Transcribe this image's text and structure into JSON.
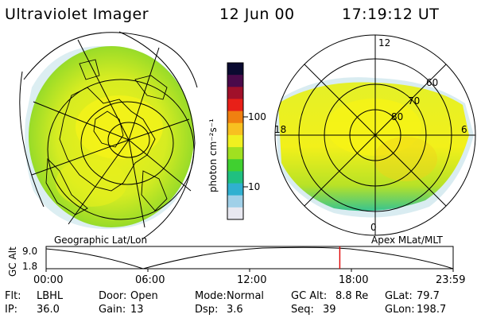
{
  "header": {
    "instrument": "Ultraviolet Imager",
    "date": "12 Jun 00",
    "time": "17:19:12 UT"
  },
  "left_panel": {
    "caption": "Geographic Lat/Lon"
  },
  "colorbar": {
    "unit_label": "photon cm⁻²s⁻¹",
    "ticks": [
      "100",
      "10"
    ],
    "colors": [
      "#0a0a30",
      "#4a0a4a",
      "#a0102a",
      "#e82018",
      "#f08010",
      "#f8c020",
      "#f0f020",
      "#a0e020",
      "#40d030",
      "#20c080",
      "#30b0d0",
      "#a0d0e8",
      "#e8e8f0"
    ]
  },
  "right_panel": {
    "caption": "Apex MLat/MLT",
    "mlt_labels": [
      "12",
      "6",
      "0",
      "18"
    ],
    "lat_labels": [
      "60",
      "70",
      "80"
    ]
  },
  "altitude_strip": {
    "ylabel": "GC Alt",
    "y_ticks": [
      "9.0",
      "1.8"
    ],
    "x_ticks": [
      "00:00",
      "06:00",
      "12:00",
      "18:00",
      "23:59"
    ],
    "marker_time": "17:19"
  },
  "info": {
    "row1": [
      {
        "k": "Flt:",
        "v": "LBHL"
      },
      {
        "k": "Door:",
        "v": "Open"
      },
      {
        "k": "Mode:",
        "v": "Normal"
      },
      {
        "k": "GC Alt:",
        "v": "8.8 Re"
      },
      {
        "k": "GLat:",
        "v": "79.7"
      }
    ],
    "row2": [
      {
        "k": "IP:",
        "v": "36.0"
      },
      {
        "k": "Gain:",
        "v": "13"
      },
      {
        "k": "Dsp:",
        "v": "3.6"
      },
      {
        "k": "Seq:",
        "v": "39"
      },
      {
        "k": "GLon:",
        "v": "198.7"
      }
    ]
  }
}
